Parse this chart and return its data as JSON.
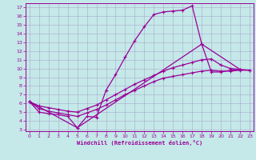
{
  "bg_color": "#c5e8e8",
  "line_color": "#990099",
  "grid_color": "#aaaacc",
  "xlim": [
    -0.4,
    23.4
  ],
  "ylim": [
    2.8,
    17.5
  ],
  "xticks": [
    0,
    1,
    2,
    3,
    4,
    5,
    6,
    7,
    8,
    9,
    10,
    11,
    12,
    13,
    14,
    15,
    16,
    17,
    18,
    19,
    20,
    21,
    22,
    23
  ],
  "yticks": [
    3,
    4,
    5,
    6,
    7,
    8,
    9,
    10,
    11,
    12,
    13,
    14,
    15,
    16,
    17
  ],
  "xlabel": "Windchill (Refroidissement éolien,°C)",
  "line1_x": [
    0,
    1,
    2,
    3,
    4,
    5,
    6,
    7,
    8,
    9,
    10,
    11,
    12,
    13,
    14,
    15,
    16,
    17,
    18,
    19,
    20,
    21,
    22
  ],
  "line1_y": [
    6.2,
    5.0,
    4.8,
    4.7,
    4.5,
    3.2,
    4.5,
    4.4,
    7.5,
    9.3,
    11.3,
    13.2,
    14.8,
    16.2,
    16.5,
    16.6,
    16.7,
    17.2,
    12.8,
    9.6,
    9.6,
    9.8,
    9.9
  ],
  "line2_x": [
    0,
    1,
    2,
    3,
    4,
    5,
    6,
    7,
    8,
    9,
    10,
    11,
    12,
    13,
    14,
    15,
    16,
    17,
    18,
    19,
    20,
    21,
    22,
    23
  ],
  "line2_y": [
    6.2,
    5.7,
    5.5,
    5.3,
    5.1,
    5.0,
    5.4,
    5.8,
    6.4,
    7.0,
    7.6,
    8.2,
    8.7,
    9.2,
    9.7,
    10.1,
    10.4,
    10.7,
    11.0,
    11.1,
    10.4,
    10.0,
    9.9,
    9.8
  ],
  "line3_x": [
    0,
    1,
    2,
    3,
    4,
    5,
    6,
    7,
    8,
    9,
    10,
    11,
    12,
    13,
    14,
    15,
    16,
    17,
    18,
    19,
    20,
    21,
    22,
    23
  ],
  "line3_y": [
    6.2,
    5.4,
    5.1,
    4.9,
    4.7,
    4.5,
    4.9,
    5.3,
    5.8,
    6.4,
    7.0,
    7.5,
    8.0,
    8.5,
    8.9,
    9.1,
    9.3,
    9.5,
    9.7,
    9.8,
    9.7,
    9.7,
    9.8,
    9.8
  ],
  "line4_x": [
    0,
    5,
    18,
    22
  ],
  "line4_y": [
    6.2,
    3.2,
    12.8,
    9.9
  ]
}
